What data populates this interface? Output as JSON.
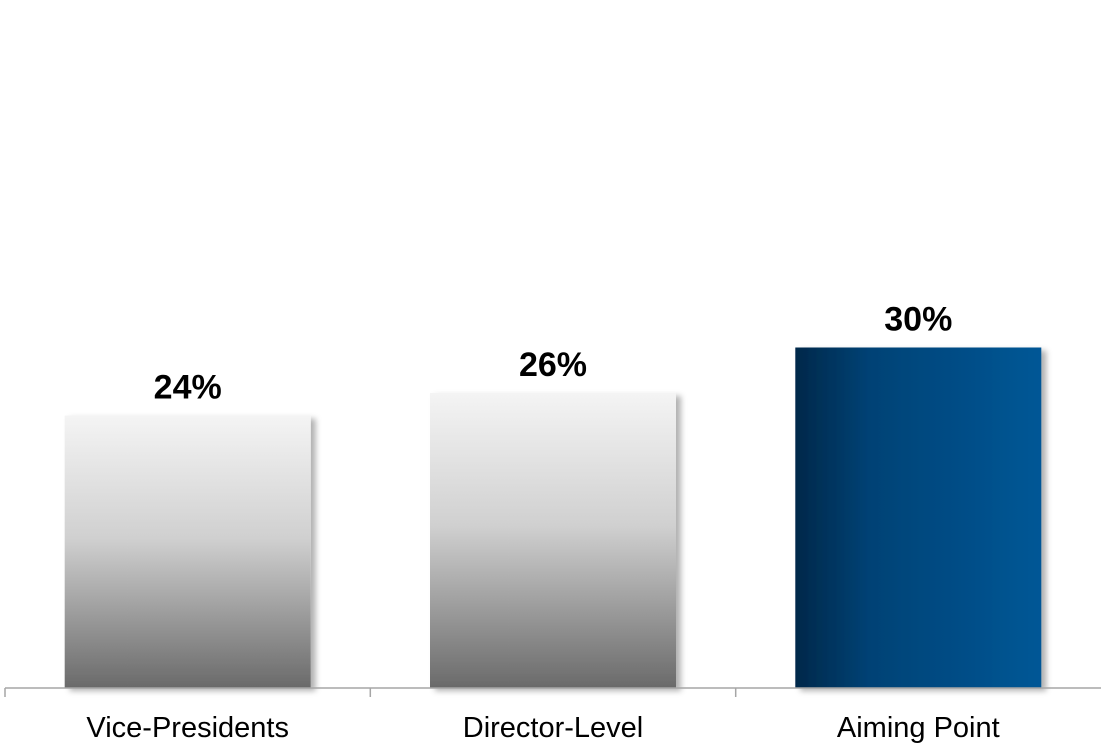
{
  "chart_data": {
    "type": "bar",
    "categories": [
      "Vice-Presidents",
      "Director-Level",
      "Aiming Point"
    ],
    "values": [
      24,
      26,
      30
    ],
    "value_labels": [
      "24%",
      "26%",
      "30%"
    ],
    "title": "",
    "xlabel": "",
    "ylabel": "",
    "ylim": [
      0,
      50
    ],
    "grid": false,
    "legend": "none",
    "bar_styles": [
      "gray-gradient",
      "gray-gradient",
      "navy-gradient"
    ],
    "colors": {
      "gray_top": "#f4f4f4",
      "gray_bottom": "#6a6a6a",
      "navy_left": "#00284a",
      "navy_right": "#005796",
      "axis": "#a6a6a6"
    }
  }
}
